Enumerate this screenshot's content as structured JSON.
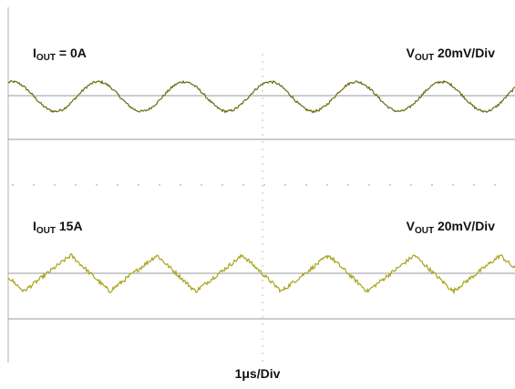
{
  "panels": [
    {
      "left_label": {
        "main": "I",
        "sub": "OUT",
        "rest": " = 0A"
      },
      "right_label": {
        "main": "V",
        "sub": "OUT",
        "rest": " 20mV/Div"
      }
    },
    {
      "left_label": {
        "main": "I",
        "sub": "OUT",
        "rest": " 15A"
      },
      "right_label": {
        "main": "V",
        "sub": "OUT",
        "rest": " 20mV/Div"
      }
    }
  ],
  "x_label": "1μs/Div",
  "colors": {
    "trace_top": "#6b6a12",
    "trace_bottom": "#a8a31a",
    "grid_line": "#9a9a9a",
    "dot": "#8a8a8a",
    "frame": "#b0b0b0"
  },
  "chart_data": [
    {
      "type": "line",
      "title": "",
      "xlabel": "1μs/Div",
      "ylabel": "",
      "ripple_period_us": 1.0,
      "ripple_cycles": 5.9,
      "ripple_amplitude_mV": 18,
      "ripple_shape": "sine",
      "noise_mV": 1.5,
      "load_current_A": 0
    },
    {
      "type": "line",
      "title": "",
      "xlabel": "1μs/Div",
      "ylabel": "",
      "ripple_period_us": 1.0,
      "ripple_cycles": 5.9,
      "ripple_amplitude_mV": 22,
      "ripple_shape": "sawtooth-triangular",
      "noise_mV": 2.5,
      "load_current_A": 15
    }
  ]
}
